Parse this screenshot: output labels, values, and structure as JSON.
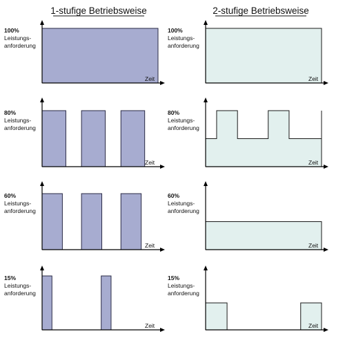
{
  "columns": [
    {
      "title": "1-stufige Betriebsweise",
      "color": "#a7acd0",
      "panels": [
        {
          "pct": "100%",
          "label1": "Leistungs-",
          "label2": "anforderung",
          "xlabel": "Zeit",
          "segments": [
            [
              0,
              1,
              1.0
            ]
          ]
        },
        {
          "pct": "80%",
          "label1": "Leistungs-",
          "label2": "anforderung",
          "xlabel": "Zeit",
          "segments": [
            [
              0,
              0.205,
              1.0
            ],
            [
              0.34,
              0.545,
              1.0
            ],
            [
              0.68,
              0.885,
              1.0
            ]
          ]
        },
        {
          "pct": "60%",
          "label1": "Leistungs-",
          "label2": "anforderung",
          "xlabel": "Zeit",
          "segments": [
            [
              0,
              0.175,
              1.0
            ],
            [
              0.34,
              0.515,
              1.0
            ],
            [
              0.68,
              0.855,
              1.0
            ]
          ]
        },
        {
          "pct": "15%",
          "label1": "Leistungs-",
          "label2": "anforderung",
          "xlabel": "Zeit",
          "segments": [
            [
              0,
              0.085,
              1.0
            ],
            [
              0.51,
              0.595,
              1.0
            ]
          ]
        }
      ]
    },
    {
      "title": "2-stufige Betriebsweise",
      "color": "#e2f0ee",
      "panels": [
        {
          "pct": "100%",
          "label1": "Leistungs-",
          "label2": "anforderung",
          "xlabel": "Zeit",
          "profile": [
            [
              0,
              1.0
            ],
            [
              1,
              1.0
            ]
          ]
        },
        {
          "pct": "80%",
          "label1": "Leistungs-",
          "label2": "anforderung",
          "xlabel": "Zeit",
          "profile": [
            [
              0,
              0.5
            ],
            [
              0.095,
              0.5
            ],
            [
              0.095,
              1.0
            ],
            [
              0.275,
              1.0
            ],
            [
              0.275,
              0.5
            ],
            [
              0.54,
              0.5
            ],
            [
              0.54,
              1.0
            ],
            [
              0.72,
              1.0
            ],
            [
              0.72,
              0.5
            ],
            [
              1,
              0.5
            ],
            [
              1,
              1.0
            ]
          ]
        },
        {
          "pct": "60%",
          "label1": "Leistungs-",
          "label2": "anforderung",
          "xlabel": "Zeit",
          "profile": [
            [
              0,
              0.5
            ],
            [
              1,
              0.5
            ]
          ]
        },
        {
          "pct": "15%",
          "label1": "Leistungs-",
          "label2": "anforderung",
          "xlabel": "Zeit",
          "segments": [
            [
              0,
              0.185,
              0.5
            ],
            [
              0.82,
              1.0,
              0.5
            ]
          ]
        }
      ]
    }
  ]
}
